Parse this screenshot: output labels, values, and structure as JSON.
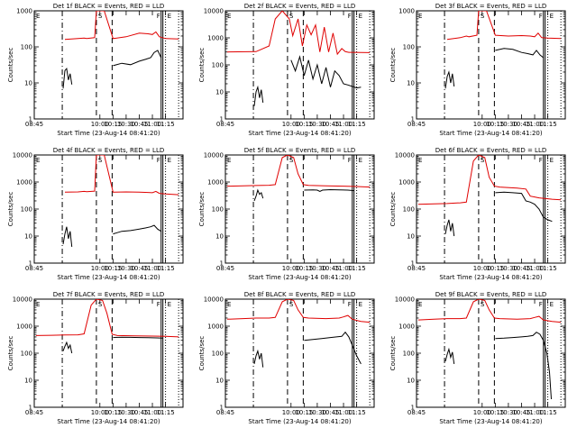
{
  "chart_data": [
    {
      "type": "line",
      "title": "Det 1f BLACK = Events, RED = LLD",
      "xlabel": "Start Time (23-Aug-14 08:41:20)",
      "ylabel": "Counts/sec",
      "ylim": [
        1,
        1000
      ],
      "ylog": true,
      "xlim": [
        525,
        695
      ],
      "xtick_labels": [
        "08:45",
        "10:00",
        "10:15",
        "10:30",
        "10:45",
        "11:00",
        "11:15"
      ],
      "ytick_labels": [
        "1",
        "10",
        "100",
        "1000"
      ],
      "markers": {
        "E": 528,
        "S": 596,
        "F": 670,
        "E2": 675
      },
      "series": [
        {
          "name": "LLD",
          "color": "#e00000",
          "x": [
            560,
            575,
            582,
            585,
            594,
            596,
            605,
            615,
            630,
            645,
            655,
            660,
            664,
            668,
            675,
            690
          ],
          "y": [
            160,
            170,
            175,
            170,
            180,
            1000,
            1000,
            170,
            190,
            240,
            230,
            220,
            260,
            190,
            170,
            165
          ]
        },
        {
          "name": "Events",
          "color": "#000000",
          "x": [
            558,
            560,
            562,
            564,
            566,
            568
          ],
          "y": [
            7,
            22,
            25,
            12,
            18,
            9
          ]
        },
        {
          "name": "Events",
          "color": "#000000",
          "x": [
            615,
            625,
            635,
            645,
            652,
            658,
            662,
            666,
            670
          ],
          "y": [
            30,
            35,
            32,
            40,
            45,
            50,
            70,
            80,
            50
          ]
        }
      ]
    },
    {
      "type": "line",
      "title": "Det 2f BLACK = Events, RED = LLD",
      "xlabel": "Start Time (23-Aug-14 08:41:20)",
      "ylabel": "Counts/sec",
      "ylim": [
        1,
        10000
      ],
      "ylog": true,
      "xlim": [
        525,
        695
      ],
      "xtick_labels": [
        "08:45",
        "10:00",
        "10:15",
        "10:30",
        "10:45",
        "11:00",
        "11:15"
      ],
      "ytick_labels": [
        "1",
        "10",
        "100",
        "1000",
        "10000"
      ],
      "markers": {
        "E": 528,
        "S": 596,
        "F": 670,
        "E2": 675
      },
      "series": [
        {
          "name": "LLD",
          "color": "#e00000",
          "x": [
            527,
            560,
            575,
            582,
            590,
            598,
            602,
            608,
            613,
            618,
            623,
            628,
            633,
            638,
            643,
            648,
            653,
            658,
            662,
            666,
            670,
            690
          ],
          "y": [
            300,
            310,
            500,
            5000,
            10000,
            5000,
            1200,
            5000,
            500,
            3000,
            1300,
            3000,
            300,
            2500,
            300,
            1500,
            250,
            400,
            310,
            290,
            290,
            285
          ]
        },
        {
          "name": "Events",
          "color": "#000000",
          "x": [
            558,
            560,
            562,
            564,
            566,
            568
          ],
          "y": [
            3,
            10,
            15,
            6,
            12,
            4
          ]
        },
        {
          "name": "Events",
          "color": "#000000",
          "x": [
            600,
            605,
            610,
            615,
            620,
            625,
            630,
            635,
            640,
            645,
            650,
            655,
            660,
            665,
            670,
            675,
            680
          ],
          "y": [
            150,
            60,
            200,
            40,
            150,
            30,
            100,
            20,
            80,
            15,
            60,
            40,
            20,
            18,
            16,
            14,
            15
          ]
        }
      ]
    },
    {
      "type": "line",
      "title": "Det 3f BLACK = Events, RED = LLD",
      "xlabel": "Start Time (23-Aug-14 08:41:20)",
      "ylabel": "Counts/sec",
      "ylim": [
        1,
        1000
      ],
      "ylog": true,
      "xlim": [
        525,
        695
      ],
      "xtick_labels": [
        "08:45",
        "10:00",
        "10:15",
        "10:30",
        "10:45",
        "11:00",
        "11:15"
      ],
      "ytick_labels": [
        "1",
        "10",
        "100",
        "1000"
      ],
      "markers": {
        "E": 528,
        "S": 596,
        "F": 670,
        "E2": 675
      },
      "series": [
        {
          "name": "LLD",
          "color": "#e00000",
          "x": [
            560,
            575,
            582,
            585,
            594,
            596,
            605,
            615,
            630,
            645,
            655,
            660,
            664,
            668,
            675,
            690
          ],
          "y": [
            160,
            180,
            200,
            190,
            210,
            1000,
            1000,
            210,
            200,
            205,
            200,
            190,
            240,
            180,
            175,
            170
          ]
        },
        {
          "name": "Events",
          "color": "#000000",
          "x": [
            558,
            560,
            562,
            564,
            566,
            568
          ],
          "y": [
            7,
            15,
            20,
            10,
            18,
            8
          ]
        },
        {
          "name": "Events",
          "color": "#000000",
          "x": [
            615,
            625,
            635,
            645,
            652,
            658,
            662,
            666,
            670
          ],
          "y": [
            80,
            90,
            85,
            70,
            65,
            60,
            80,
            60,
            50
          ]
        }
      ]
    },
    {
      "type": "line",
      "title": "Det 4f BLACK = Events, RED = LLD",
      "xlabel": "Start Time (23-Aug-14 08:41:20)",
      "ylabel": "Counts/sec",
      "ylim": [
        1,
        10000
      ],
      "ylog": true,
      "xlim": [
        525,
        695
      ],
      "xtick_labels": [
        "08:45",
        "10:00",
        "10:15",
        "10:30",
        "10:45",
        "11:00",
        "11:15"
      ],
      "ytick_labels": [
        "1",
        "10",
        "100",
        "1000",
        "10000"
      ],
      "markers": {
        "E": 528,
        "S": 596,
        "F": 670,
        "E2": 675
      },
      "series": [
        {
          "name": "LLD",
          "color": "#e00000",
          "x": [
            560,
            575,
            582,
            585,
            594,
            596,
            605,
            615,
            630,
            645,
            655,
            660,
            664,
            668,
            675,
            690
          ],
          "y": [
            420,
            430,
            450,
            440,
            460,
            10000,
            10000,
            420,
            430,
            420,
            410,
            400,
            450,
            380,
            360,
            340
          ]
        },
        {
          "name": "Events",
          "color": "#000000",
          "x": [
            558,
            560,
            562,
            564,
            566,
            568
          ],
          "y": [
            5,
            12,
            22,
            8,
            15,
            4
          ]
        },
        {
          "name": "Events",
          "color": "#000000",
          "x": [
            615,
            625,
            635,
            645,
            652,
            658,
            662,
            666,
            670
          ],
          "y": [
            12,
            15,
            16,
            18,
            20,
            22,
            25,
            18,
            15
          ]
        }
      ]
    },
    {
      "type": "line",
      "title": "Det 5f BLACK = Events, RED = LLD",
      "xlabel": "Start Time (23-Aug-14 08:41:20)",
      "ylabel": "Counts/sec",
      "ylim": [
        1,
        10000
      ],
      "ylog": true,
      "xlim": [
        525,
        695
      ],
      "xtick_labels": [
        "08:45",
        "10:00",
        "10:15",
        "10:30",
        "10:45",
        "11:00",
        "11:15"
      ],
      "ytick_labels": [
        "1",
        "10",
        "100",
        "1000",
        "10000"
      ],
      "markers": {
        "E": 528,
        "S": 596,
        "F": 670,
        "E2": 675
      },
      "series": [
        {
          "name": "LLD",
          "color": "#e00000",
          "x": [
            527,
            545,
            560,
            575,
            582,
            590,
            596,
            603,
            608,
            614,
            620,
            640,
            660,
            675,
            690
          ],
          "y": [
            700,
            720,
            740,
            760,
            800,
            8000,
            10000,
            8000,
            2000,
            800,
            750,
            720,
            700,
            680,
            650
          ]
        },
        {
          "name": "Events",
          "color": "#000000",
          "x": [
            558,
            560,
            562,
            564,
            566,
            568
          ],
          "y": [
            200,
            300,
            500,
            350,
            400,
            250
          ]
        },
        {
          "name": "Events",
          "color": "#000000",
          "x": [
            615,
            625,
            630,
            633,
            636,
            645,
            655,
            665,
            672
          ],
          "y": [
            500,
            510,
            500,
            450,
            500,
            520,
            510,
            500,
            480
          ]
        }
      ]
    },
    {
      "type": "line",
      "title": "Det 6f BLACK = Events, RED = LLD",
      "xlabel": "Start Time (23-Aug-14 08:41:20)",
      "ylabel": "Counts/sec",
      "ylim": [
        1,
        10000
      ],
      "ylog": true,
      "xlim": [
        525,
        695
      ],
      "xtick_labels": [
        "08:45",
        "10:00",
        "10:15",
        "10:30",
        "10:45",
        "11:00",
        "11:15"
      ],
      "ytick_labels": [
        "1",
        "10",
        "100",
        "1000",
        "10000"
      ],
      "markers": {
        "E": 528,
        "S": 596,
        "F": 670,
        "E2": 675
      },
      "series": [
        {
          "name": "LLD",
          "color": "#e00000",
          "x": [
            527,
            545,
            560,
            575,
            582,
            590,
            596,
            603,
            608,
            614,
            620,
            640,
            650,
            655,
            660,
            665,
            670,
            680,
            690
          ],
          "y": [
            150,
            155,
            160,
            170,
            180,
            6000,
            10000,
            8000,
            1500,
            700,
            650,
            600,
            550,
            300,
            280,
            260,
            250,
            230,
            220
          ]
        },
        {
          "name": "Events",
          "color": "#000000",
          "x": [
            558,
            560,
            562,
            564,
            566,
            568
          ],
          "y": [
            12,
            25,
            40,
            15,
            30,
            10
          ]
        },
        {
          "name": "Events",
          "color": "#000000",
          "x": [
            615,
            625,
            635,
            645,
            650,
            655,
            660,
            665,
            670,
            675,
            680
          ],
          "y": [
            400,
            420,
            400,
            380,
            200,
            180,
            150,
            100,
            50,
            40,
            35
          ]
        }
      ]
    },
    {
      "type": "line",
      "title": "Det 7f BLACK = Events, RED = LLD",
      "xlabel": "Start Time (23-Aug-14 08:41:20)",
      "ylabel": "Counts/sec",
      "ylim": [
        1,
        10000
      ],
      "ylog": true,
      "xlim": [
        525,
        695
      ],
      "xtick_labels": [
        "08:45",
        "10:00",
        "10:15",
        "10:30",
        "10:45",
        "11:00",
        "11:15"
      ],
      "ytick_labels": [
        "1",
        "10",
        "100",
        "1000",
        "10000"
      ],
      "markers": {
        "E": 528,
        "S": 596,
        "F": 670,
        "E2": 675
      },
      "series": [
        {
          "name": "LLD",
          "color": "#e00000",
          "x": [
            527,
            545,
            560,
            575,
            582,
            590,
            596,
            603,
            608,
            614,
            620,
            640,
            660,
            675,
            690
          ],
          "y": [
            450,
            460,
            470,
            480,
            520,
            6000,
            10000,
            9000,
            3000,
            500,
            450,
            440,
            430,
            420,
            400
          ]
        },
        {
          "name": "Events",
          "color": "#000000",
          "x": [
            558,
            560,
            562,
            564,
            566,
            568
          ],
          "y": [
            120,
            180,
            250,
            150,
            200,
            100
          ]
        },
        {
          "name": "Events",
          "color": "#000000",
          "x": [
            615,
            625,
            635,
            645,
            655,
            665,
            672
          ],
          "y": [
            380,
            390,
            385,
            380,
            375,
            370,
            360
          ]
        }
      ]
    },
    {
      "type": "line",
      "title": "Det 8f BLACK = Events, RED = LLD",
      "xlabel": "Start Time (23-Aug-14 08:41:20)",
      "ylabel": "Counts/sec",
      "ylim": [
        1,
        10000
      ],
      "ylog": true,
      "xlim": [
        525,
        695
      ],
      "xtick_labels": [
        "08:45",
        "10:00",
        "10:15",
        "10:30",
        "10:45",
        "11:00",
        "11:15"
      ],
      "ytick_labels": [
        "1",
        "10",
        "100",
        "1000",
        "10000"
      ],
      "markers": {
        "E": 528,
        "S": 596,
        "F": 670,
        "E2": 675
      },
      "series": [
        {
          "name": "LLD",
          "color": "#e00000",
          "x": [
            527,
            545,
            560,
            575,
            582,
            590,
            596,
            603,
            608,
            614,
            620,
            640,
            655,
            660,
            665,
            670,
            680,
            690
          ],
          "y": [
            1800,
            1900,
            2000,
            2000,
            2100,
            8000,
            10000,
            9000,
            4000,
            2100,
            2000,
            1900,
            2000,
            2200,
            2500,
            1800,
            1500,
            1400
          ]
        },
        {
          "name": "Events",
          "color": "#000000",
          "x": [
            558,
            560,
            562,
            564,
            566,
            568
          ],
          "y": [
            40,
            80,
            120,
            60,
            100,
            30
          ]
        },
        {
          "name": "Events",
          "color": "#000000",
          "x": [
            615,
            625,
            635,
            645,
            652,
            658,
            662,
            666,
            670,
            675,
            680
          ],
          "y": [
            300,
            320,
            350,
            380,
            400,
            420,
            600,
            400,
            200,
            80,
            40
          ]
        }
      ]
    },
    {
      "type": "line",
      "title": "Det 9f BLACK = Events, RED = LLD",
      "xlabel": "Start Time (23-Aug-14 08:41:20)",
      "ylabel": "Counts/sec",
      "ylim": [
        1,
        10000
      ],
      "ylog": true,
      "xlim": [
        525,
        695
      ],
      "xtick_labels": [
        "08:45",
        "10:00",
        "10:15",
        "10:30",
        "10:45",
        "11:00",
        "11:15"
      ],
      "ytick_labels": [
        "1",
        "10",
        "100",
        "1000",
        "10000"
      ],
      "markers": {
        "E": 528,
        "S": 596,
        "F": 670,
        "E2": 675
      },
      "series": [
        {
          "name": "LLD",
          "color": "#e00000",
          "x": [
            527,
            545,
            560,
            575,
            582,
            590,
            596,
            603,
            608,
            614,
            620,
            640,
            655,
            660,
            665,
            670,
            680,
            690
          ],
          "y": [
            1700,
            1800,
            1900,
            1900,
            2000,
            8000,
            10000,
            9000,
            4000,
            2000,
            1900,
            1800,
            1900,
            2100,
            2300,
            1700,
            1500,
            1400
          ]
        },
        {
          "name": "Events",
          "color": "#000000",
          "x": [
            558,
            560,
            562,
            564,
            566,
            568
          ],
          "y": [
            50,
            90,
            140,
            70,
            110,
            40
          ]
        },
        {
          "name": "Events",
          "color": "#000000",
          "x": [
            615,
            625,
            635,
            645,
            652,
            658,
            662,
            666,
            670,
            674,
            677,
            679
          ],
          "y": [
            350,
            360,
            380,
            400,
            420,
            450,
            600,
            500,
            300,
            100,
            20,
            2
          ]
        }
      ]
    }
  ]
}
